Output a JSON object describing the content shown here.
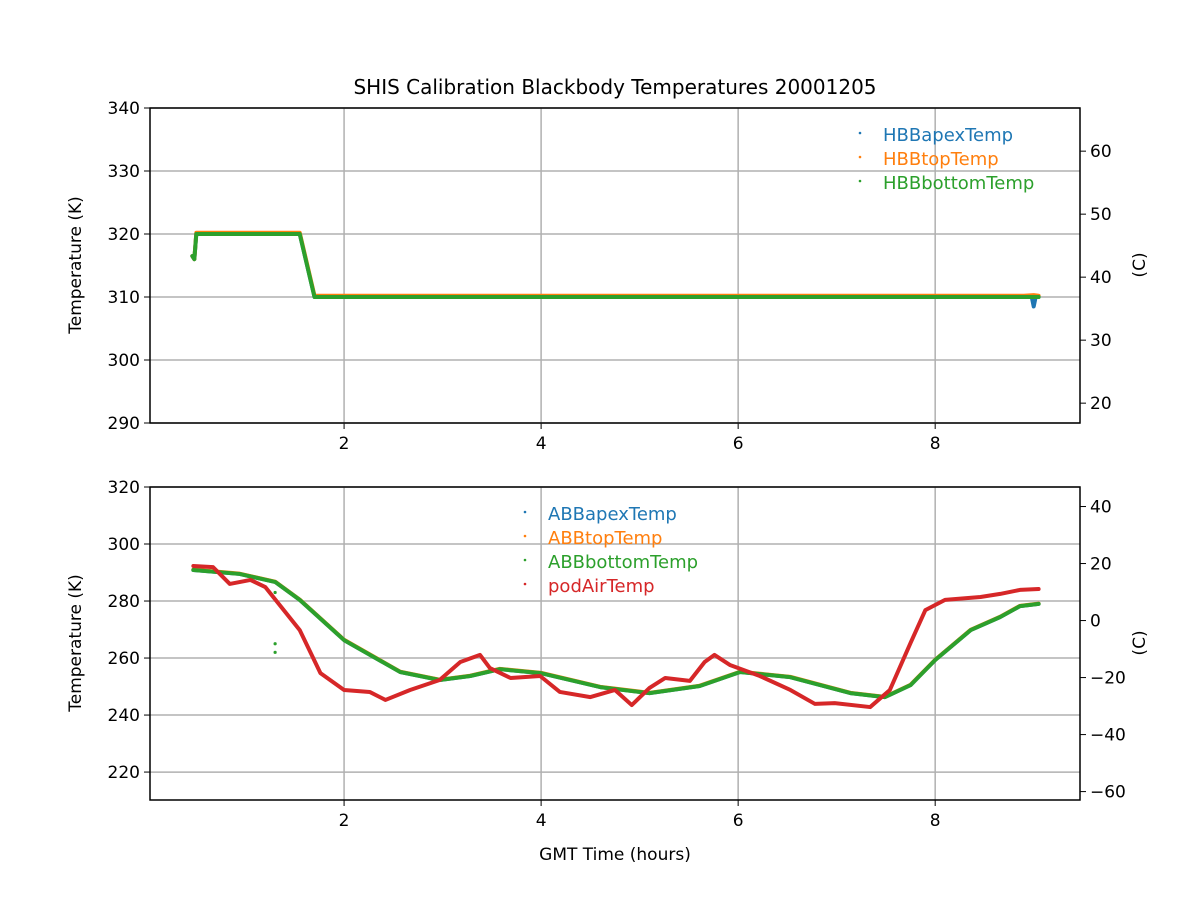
{
  "chart_data": [
    {
      "type": "line",
      "title": "SHIS Calibration Blackbody Temperatures 20001205",
      "xlabel": "",
      "ylabel": "Temperature (K)",
      "y2label": "(C)",
      "xlim": [
        0.03,
        9.47
      ],
      "ylim": [
        290,
        340
      ],
      "xticks": [
        2,
        4,
        6,
        8
      ],
      "yticks": [
        290,
        300,
        310,
        320,
        330,
        340
      ],
      "y2ticks": [
        20,
        30,
        40,
        50,
        60
      ],
      "grid": true,
      "legend_position": "top-right",
      "series": [
        {
          "name": "HBBapexTemp",
          "color": "#1f77b4",
          "x": [
            0.46,
            0.48,
            0.5,
            1.55,
            1.7,
            8.9,
            8.98,
            9.0,
            9.02,
            9.05
          ],
          "y": [
            316.5,
            316,
            320,
            320,
            310,
            310,
            310,
            308.5,
            310,
            310
          ]
        },
        {
          "name": "HBBtopTemp",
          "color": "#ff7f0e",
          "x": [
            0.46,
            0.48,
            0.5,
            1.55,
            1.7,
            8.9,
            9.0,
            9.05
          ],
          "y": [
            316.5,
            316,
            320.2,
            320.2,
            310.2,
            310.2,
            310.3,
            310.2
          ]
        },
        {
          "name": "HBBbottomTemp",
          "color": "#2ca02c",
          "x": [
            0.46,
            0.48,
            0.5,
            1.55,
            1.7,
            8.9,
            9.0,
            9.05
          ],
          "y": [
            316.5,
            316,
            320,
            320,
            310,
            310,
            310,
            310
          ]
        }
      ]
    },
    {
      "type": "line",
      "title": "",
      "xlabel": "GMT Time (hours)",
      "ylabel": "Temperature (K)",
      "y2label": "(C)",
      "xlim": [
        0.03,
        9.47
      ],
      "ylim": [
        210.2,
        320
      ],
      "xticks": [
        2,
        4,
        6,
        8
      ],
      "yticks": [
        220,
        240,
        260,
        280,
        300,
        320
      ],
      "y2ticks": [
        -60,
        -40,
        -20,
        0,
        20,
        40
      ],
      "grid": true,
      "legend_position": "top-center",
      "series": [
        {
          "name": "ABBapexTemp",
          "color": "#1f77b4",
          "x": [
            0.47,
            0.94,
            1.3,
            1.55,
            2.0,
            2.57,
            2.97,
            3.28,
            3.58,
            4.0,
            4.6,
            5.1,
            5.61,
            6.02,
            6.53,
            7.14,
            7.49,
            7.75,
            8.0,
            8.36,
            8.66,
            8.86,
            9.05
          ],
          "y": [
            290.9,
            289.5,
            286.7,
            280.4,
            266.3,
            255.1,
            252.3,
            253.7,
            256.1,
            254.7,
            249.8,
            247.7,
            250.2,
            255.1,
            253.3,
            247.7,
            246.3,
            250.5,
            259.3,
            269.8,
            274.4,
            278.2,
            279
          ]
        },
        {
          "name": "ABBtopTemp",
          "color": "#ff7f0e",
          "x": [
            0.47,
            0.94,
            1.3,
            1.55,
            2.0,
            2.57,
            2.97,
            3.28,
            3.58,
            4.0,
            4.6,
            5.1,
            5.61,
            6.02,
            6.53,
            7.14,
            7.49,
            7.75,
            8.0,
            8.36,
            8.66,
            8.86,
            9.05
          ],
          "y": [
            291,
            289.6,
            286.8,
            280.5,
            266.4,
            255.2,
            252.4,
            253.8,
            256.2,
            254.8,
            249.9,
            247.8,
            250.3,
            255.2,
            253.4,
            247.8,
            246.4,
            250.6,
            259.4,
            269.9,
            274.5,
            278.3,
            279.1
          ]
        },
        {
          "name": "ABBbottomTemp",
          "color": "#2ca02c",
          "x": [
            0.47,
            0.94,
            1.3,
            1.55,
            2.0,
            2.57,
            2.97,
            3.28,
            3.58,
            4.0,
            4.6,
            5.1,
            5.61,
            6.02,
            6.53,
            7.14,
            7.49,
            7.75,
            8.0,
            8.36,
            8.66,
            8.86,
            9.05
          ],
          "y": [
            290.9,
            289.5,
            286.7,
            280.4,
            266.3,
            255.1,
            252.3,
            253.7,
            256.1,
            254.7,
            249.8,
            247.7,
            250.2,
            255.1,
            253.3,
            247.7,
            246.3,
            250.5,
            259.3,
            269.8,
            274.4,
            278.2,
            279
          ],
          "outliers": {
            "x": [
              1.3,
              1.3,
              1.3
            ],
            "y": [
              283,
              265,
              262
            ]
          }
        },
        {
          "name": "podAirTemp",
          "color": "#d62728",
          "x": [
            0.47,
            0.67,
            0.84,
            1.05,
            1.2,
            1.55,
            1.76,
            2.0,
            2.26,
            2.42,
            2.67,
            2.97,
            3.18,
            3.38,
            3.48,
            3.69,
            3.99,
            4.19,
            4.5,
            4.75,
            4.92,
            5.1,
            5.26,
            5.51,
            5.66,
            5.76,
            5.92,
            6.22,
            6.53,
            6.78,
            6.98,
            7.34,
            7.54,
            7.75,
            7.9,
            8.1,
            8.46,
            8.66,
            8.86,
            9.05
          ],
          "y": [
            292.3,
            291.9,
            286,
            287.4,
            284.9,
            269.8,
            254.7,
            248.8,
            248.1,
            245.3,
            248.8,
            252.3,
            258.6,
            261.1,
            256.5,
            253,
            253.7,
            248.1,
            246.3,
            248.8,
            243.5,
            249.5,
            253,
            252,
            258.6,
            261.1,
            257.5,
            253.7,
            248.8,
            243.9,
            244.2,
            242.8,
            248.8,
            265.3,
            276.8,
            280.4,
            281.4,
            282.5,
            283.9,
            284.2
          ]
        }
      ]
    }
  ]
}
